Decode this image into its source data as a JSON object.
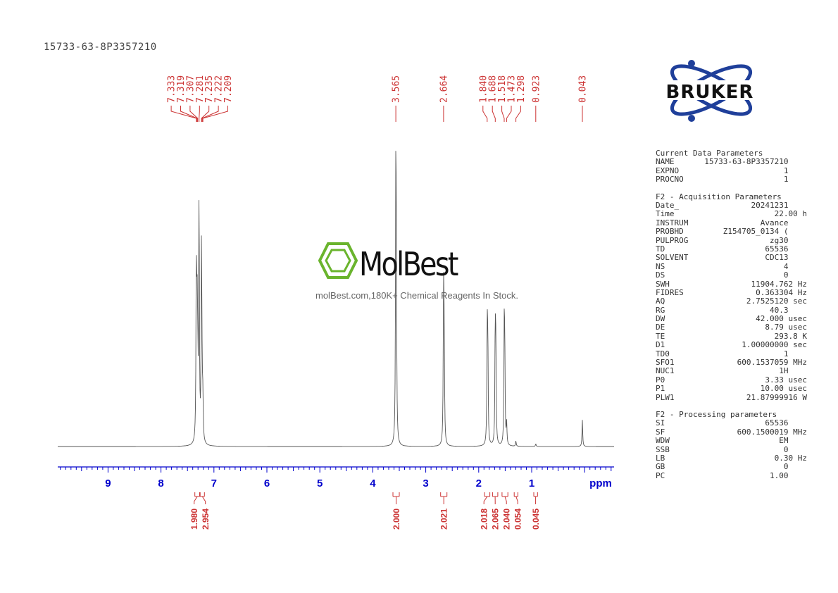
{
  "sample_id": "15733-63-8P3357210",
  "brand": {
    "name": "BRUKER",
    "watermark_name": "MolBest",
    "watermark_tagline": "molBest.com,180K+ Chemical Reagents In Stock."
  },
  "colors": {
    "spectrum": "#555555",
    "annotation": "#cc3333",
    "axis": "#0000cc",
    "logo_blue": "#1f3f9a",
    "watermark_green": "#6ab42d"
  },
  "chart_data": {
    "type": "line",
    "title": "15733-63-8P3357210",
    "xlabel": "ppm",
    "ylabel": "",
    "x_reversed": true,
    "xlim": [
      10.0,
      -0.55
    ],
    "x_ticks": [
      "9",
      "8",
      "7",
      "6",
      "5",
      "4",
      "3",
      "2",
      "1"
    ],
    "x_unit_label": "ppm",
    "grid": false,
    "peak_labels": [
      "7.333",
      "7.319",
      "7.307",
      "7.281",
      "7.235",
      "7.222",
      "7.209",
      "3.565",
      "2.664",
      "1.840",
      "1.688",
      "1.518",
      "1.473",
      "1.298",
      "0.923",
      "0.043"
    ],
    "peaks": [
      {
        "ppm": 7.333,
        "rel_height": 0.63
      },
      {
        "ppm": 7.319,
        "rel_height": 0.44
      },
      {
        "ppm": 7.307,
        "rel_height": 0.28
      },
      {
        "ppm": 7.281,
        "rel_height": 0.93
      },
      {
        "ppm": 7.235,
        "rel_height": 0.76
      },
      {
        "ppm": 7.222,
        "rel_height": 0.14
      },
      {
        "ppm": 7.209,
        "rel_height": 0.14
      },
      {
        "ppm": 3.565,
        "rel_height": 1.0
      },
      {
        "ppm": 3.555,
        "rel_height": 0.52
      },
      {
        "ppm": 2.664,
        "rel_height": 0.55
      },
      {
        "ppm": 2.652,
        "rel_height": 0.4
      },
      {
        "ppm": 1.84,
        "rel_height": 0.42
      },
      {
        "ppm": 1.828,
        "rel_height": 0.36
      },
      {
        "ppm": 1.688,
        "rel_height": 0.43
      },
      {
        "ppm": 1.676,
        "rel_height": 0.33
      },
      {
        "ppm": 1.518,
        "rel_height": 0.42
      },
      {
        "ppm": 1.508,
        "rel_height": 0.3
      },
      {
        "ppm": 1.473,
        "rel_height": 0.08
      },
      {
        "ppm": 1.298,
        "rel_height": 0.02
      },
      {
        "ppm": 0.923,
        "rel_height": 0.01
      },
      {
        "ppm": 0.043,
        "rel_height": 0.1
      }
    ],
    "integrals": [
      {
        "value": "1.980",
        "from": 7.36,
        "to": 7.27
      },
      {
        "value": "2.954",
        "from": 7.26,
        "to": 7.18
      },
      {
        "value": "2.000",
        "from": 3.62,
        "to": 3.5
      },
      {
        "value": "2.021",
        "from": 2.72,
        "to": 2.6
      },
      {
        "value": "2.018",
        "from": 1.89,
        "to": 1.79
      },
      {
        "value": "2.065",
        "from": 1.74,
        "to": 1.64
      },
      {
        "value": "2.040",
        "from": 1.56,
        "to": 1.45
      },
      {
        "value": "0.054",
        "from": 1.33,
        "to": 1.26
      },
      {
        "value": "0.045",
        "from": 0.96,
        "to": 0.89
      }
    ]
  },
  "parameters": {
    "groups": [
      {
        "header": "Current Data Parameters",
        "rows": [
          {
            "key": "NAME",
            "value": "15733-63-8P3357210"
          },
          {
            "key": "EXPNO",
            "value": "1"
          },
          {
            "key": "PROCNO",
            "value": "1"
          }
        ]
      },
      {
        "header": "F2 - Acquisition Parameters",
        "rows": [
          {
            "key": "Date_",
            "value": "20241231"
          },
          {
            "key": "Time",
            "value": "22.00 h"
          },
          {
            "key": "INSTRUM",
            "value": "Avance"
          },
          {
            "key": "PROBHD",
            "value": "Z154705_0134 ("
          },
          {
            "key": "PULPROG",
            "value": "zg30"
          },
          {
            "key": "TD",
            "value": "65536"
          },
          {
            "key": "SOLVENT",
            "value": "CDC13"
          },
          {
            "key": "NS",
            "value": "4"
          },
          {
            "key": "DS",
            "value": "0"
          },
          {
            "key": "SWH",
            "value": "11904.762 Hz"
          },
          {
            "key": "FIDRES",
            "value": "0.363304 Hz"
          },
          {
            "key": "AQ",
            "value": "2.7525120 sec"
          },
          {
            "key": "RG",
            "value": "40.3"
          },
          {
            "key": "DW",
            "value": "42.000 usec"
          },
          {
            "key": "DE",
            "value": "8.79 usec"
          },
          {
            "key": "TE",
            "value": "293.8 K"
          },
          {
            "key": "D1",
            "value": "1.00000000 sec"
          },
          {
            "key": "TD0",
            "value": "1"
          },
          {
            "key": "SFO1",
            "value": "600.1537059 MHz"
          },
          {
            "key": "NUC1",
            "value": "1H"
          },
          {
            "key": "P0",
            "value": "3.33 usec"
          },
          {
            "key": "P1",
            "value": "10.00 usec"
          },
          {
            "key": "PLW1",
            "value": "21.87999916 W"
          }
        ]
      },
      {
        "header": "F2 - Processing parameters",
        "rows": [
          {
            "key": "SI",
            "value": "65536"
          },
          {
            "key": "SF",
            "value": "600.1500019 MHz"
          },
          {
            "key": "WDW",
            "value": "EM"
          },
          {
            "key": "SSB",
            "value": "0"
          },
          {
            "key": "LB",
            "value": "0.30 Hz"
          },
          {
            "key": "GB",
            "value": "0"
          },
          {
            "key": "PC",
            "value": "1.00"
          }
        ]
      }
    ]
  }
}
